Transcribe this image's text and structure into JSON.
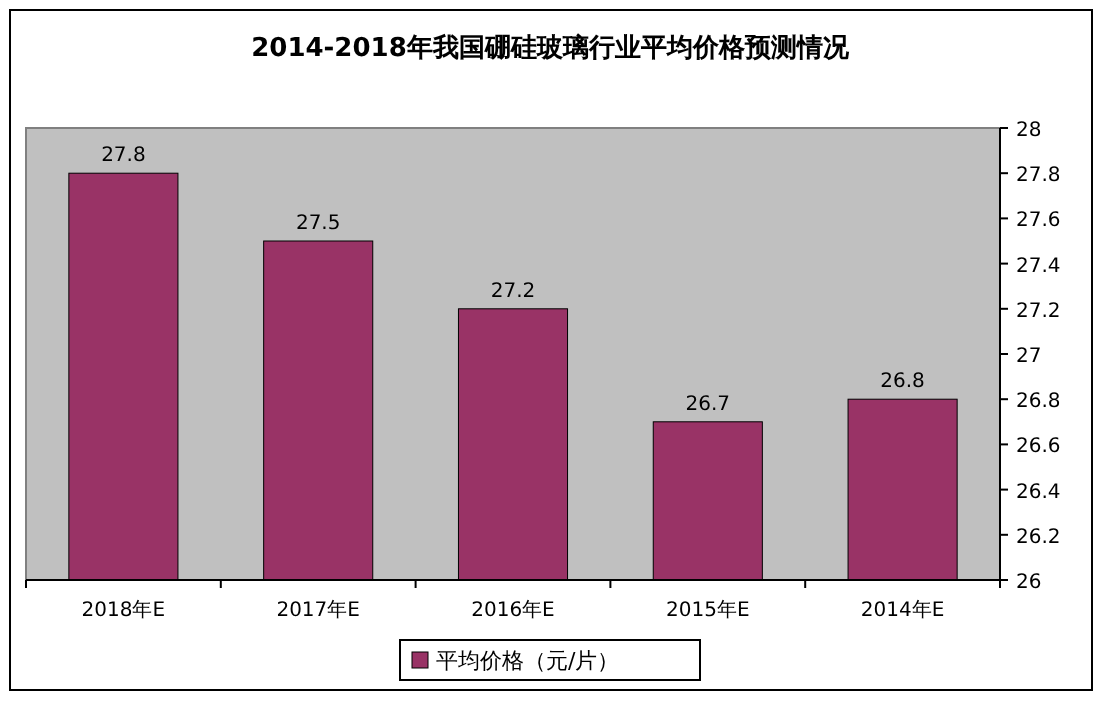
{
  "chart_data": {
    "type": "bar",
    "title": "2014-2018年我国硼硅玻璃行业平均价格预测情况",
    "categories": [
      "2018年E",
      "2017年E",
      "2016年E",
      "2015年E",
      "2014年E"
    ],
    "series": [
      {
        "name": "平均价格（元/片）",
        "color": "#993366",
        "values": [
          27.8,
          27.5,
          27.2,
          26.7,
          26.8
        ]
      }
    ],
    "ylim": [
      26,
      28
    ],
    "yticks": [
      26,
      26.2,
      26.4,
      26.6,
      26.8,
      27,
      27.2,
      27.4,
      27.6,
      27.8,
      28
    ],
    "data_labels": true,
    "legend": "bottom",
    "grid": false
  }
}
